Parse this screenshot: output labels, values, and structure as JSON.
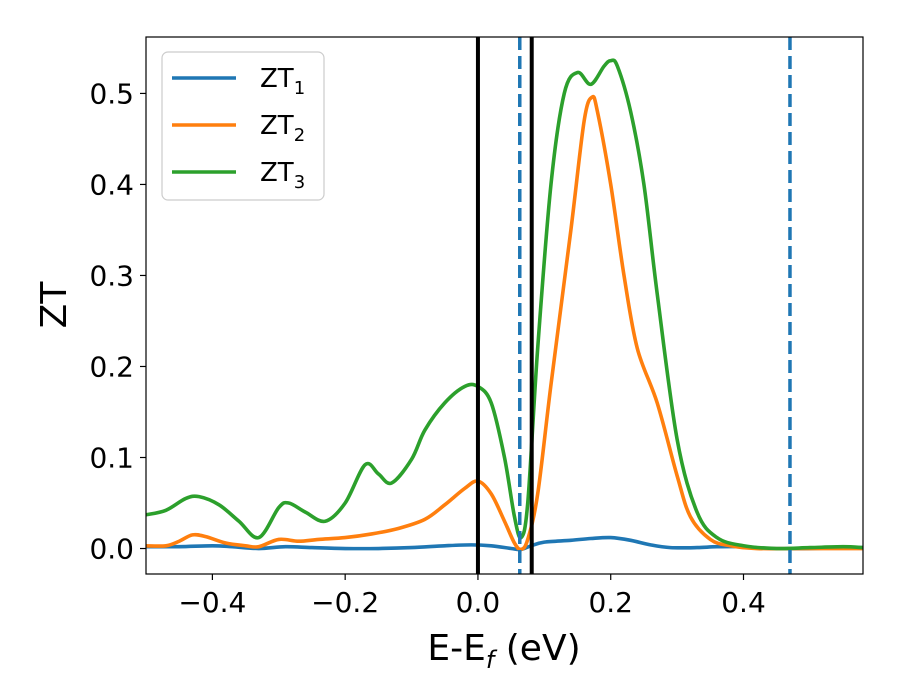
{
  "chart_data": {
    "type": "line",
    "xlabel": {
      "main": "E-E",
      "sub": "f",
      "unit": " (eV)"
    },
    "ylabel": "ZT",
    "xlim": [
      -0.5,
      0.58
    ],
    "ylim": [
      -0.028,
      0.562
    ],
    "x_ticks": [
      {
        "value": -0.4,
        "label": "−0.4"
      },
      {
        "value": -0.2,
        "label": "−0.2"
      },
      {
        "value": 0.0,
        "label": "0.0"
      },
      {
        "value": 0.2,
        "label": "0.2"
      },
      {
        "value": 0.4,
        "label": "0.4"
      }
    ],
    "y_ticks": [
      {
        "value": 0.0,
        "label": "0.0"
      },
      {
        "value": 0.1,
        "label": "0.1"
      },
      {
        "value": 0.2,
        "label": "0.2"
      },
      {
        "value": 0.3,
        "label": "0.3"
      },
      {
        "value": 0.4,
        "label": "0.4"
      },
      {
        "value": 0.5,
        "label": "0.5"
      }
    ],
    "grid": false,
    "legend_position": "top-left",
    "series": [
      {
        "name": "ZT",
        "name_sub": "1",
        "color": "#1f77b4",
        "points": [
          [
            -0.5,
            0.002
          ],
          [
            -0.45,
            0.002
          ],
          [
            -0.4,
            0.003
          ],
          [
            -0.37,
            0.002
          ],
          [
            -0.33,
            0.0
          ],
          [
            -0.29,
            0.002
          ],
          [
            -0.25,
            0.001
          ],
          [
            -0.2,
            0.0
          ],
          [
            -0.15,
            0.0
          ],
          [
            -0.1,
            0.001
          ],
          [
            -0.05,
            0.003
          ],
          [
            -0.01,
            0.004
          ],
          [
            0.02,
            0.003
          ],
          [
            0.05,
            0.0
          ],
          [
            0.065,
            -0.001
          ],
          [
            0.08,
            0.003
          ],
          [
            0.1,
            0.007
          ],
          [
            0.14,
            0.009
          ],
          [
            0.17,
            0.011
          ],
          [
            0.2,
            0.012
          ],
          [
            0.23,
            0.009
          ],
          [
            0.26,
            0.004
          ],
          [
            0.29,
            0.001
          ],
          [
            0.33,
            0.001
          ],
          [
            0.36,
            0.002
          ],
          [
            0.4,
            0.002
          ],
          [
            0.44,
            0.0
          ],
          [
            0.5,
            0.0
          ],
          [
            0.55,
            0.001
          ],
          [
            0.58,
            0.001
          ]
        ]
      },
      {
        "name": "ZT",
        "name_sub": "2",
        "color": "#ff7f0e",
        "points": [
          [
            -0.5,
            0.003
          ],
          [
            -0.47,
            0.003
          ],
          [
            -0.45,
            0.008
          ],
          [
            -0.43,
            0.015
          ],
          [
            -0.41,
            0.013
          ],
          [
            -0.38,
            0.006
          ],
          [
            -0.35,
            0.003
          ],
          [
            -0.33,
            0.002
          ],
          [
            -0.3,
            0.01
          ],
          [
            -0.27,
            0.008
          ],
          [
            -0.24,
            0.01
          ],
          [
            -0.2,
            0.012
          ],
          [
            -0.16,
            0.016
          ],
          [
            -0.12,
            0.022
          ],
          [
            -0.08,
            0.032
          ],
          [
            -0.05,
            0.048
          ],
          [
            -0.02,
            0.066
          ],
          [
            0.0,
            0.074
          ],
          [
            0.02,
            0.06
          ],
          [
            0.04,
            0.03
          ],
          [
            0.055,
            0.006
          ],
          [
            0.065,
            -0.001
          ],
          [
            0.075,
            0.01
          ],
          [
            0.09,
            0.06
          ],
          [
            0.11,
            0.18
          ],
          [
            0.14,
            0.35
          ],
          [
            0.16,
            0.47
          ],
          [
            0.172,
            0.496
          ],
          [
            0.18,
            0.48
          ],
          [
            0.2,
            0.4
          ],
          [
            0.22,
            0.3
          ],
          [
            0.24,
            0.22
          ],
          [
            0.27,
            0.16
          ],
          [
            0.3,
            0.08
          ],
          [
            0.32,
            0.035
          ],
          [
            0.35,
            0.01
          ],
          [
            0.38,
            0.003
          ],
          [
            0.42,
            0.0
          ],
          [
            0.5,
            0.0
          ],
          [
            0.58,
            0.0
          ]
        ]
      },
      {
        "name": "ZT",
        "name_sub": "3",
        "color": "#2ca02c",
        "points": [
          [
            -0.5,
            0.037
          ],
          [
            -0.47,
            0.042
          ],
          [
            -0.44,
            0.055
          ],
          [
            -0.42,
            0.057
          ],
          [
            -0.39,
            0.048
          ],
          [
            -0.36,
            0.03
          ],
          [
            -0.33,
            0.012
          ],
          [
            -0.3,
            0.045
          ],
          [
            -0.285,
            0.05
          ],
          [
            -0.26,
            0.04
          ],
          [
            -0.23,
            0.03
          ],
          [
            -0.2,
            0.05
          ],
          [
            -0.17,
            0.092
          ],
          [
            -0.15,
            0.082
          ],
          [
            -0.13,
            0.072
          ],
          [
            -0.1,
            0.098
          ],
          [
            -0.08,
            0.13
          ],
          [
            -0.05,
            0.16
          ],
          [
            -0.02,
            0.178
          ],
          [
            0.0,
            0.178
          ],
          [
            0.02,
            0.16
          ],
          [
            0.04,
            0.1
          ],
          [
            0.055,
            0.035
          ],
          [
            0.065,
            0.012
          ],
          [
            0.075,
            0.05
          ],
          [
            0.09,
            0.22
          ],
          [
            0.11,
            0.4
          ],
          [
            0.13,
            0.5
          ],
          [
            0.15,
            0.523
          ],
          [
            0.17,
            0.51
          ],
          [
            0.19,
            0.53
          ],
          [
            0.2,
            0.536
          ],
          [
            0.21,
            0.53
          ],
          [
            0.23,
            0.48
          ],
          [
            0.25,
            0.4
          ],
          [
            0.27,
            0.28
          ],
          [
            0.3,
            0.12
          ],
          [
            0.33,
            0.04
          ],
          [
            0.36,
            0.012
          ],
          [
            0.4,
            0.003
          ],
          [
            0.45,
            0.0
          ],
          [
            0.5,
            0.001
          ],
          [
            0.55,
            0.002
          ],
          [
            0.58,
            0.001
          ]
        ]
      }
    ],
    "vertical_lines": [
      {
        "x": 0.0,
        "style": "solid",
        "color": "#000000"
      },
      {
        "x": 0.081,
        "style": "solid",
        "color": "#000000"
      },
      {
        "x": 0.063,
        "style": "dashed",
        "color": "#1f77b4"
      },
      {
        "x": 0.47,
        "style": "dashed",
        "color": "#1f77b4"
      }
    ]
  }
}
